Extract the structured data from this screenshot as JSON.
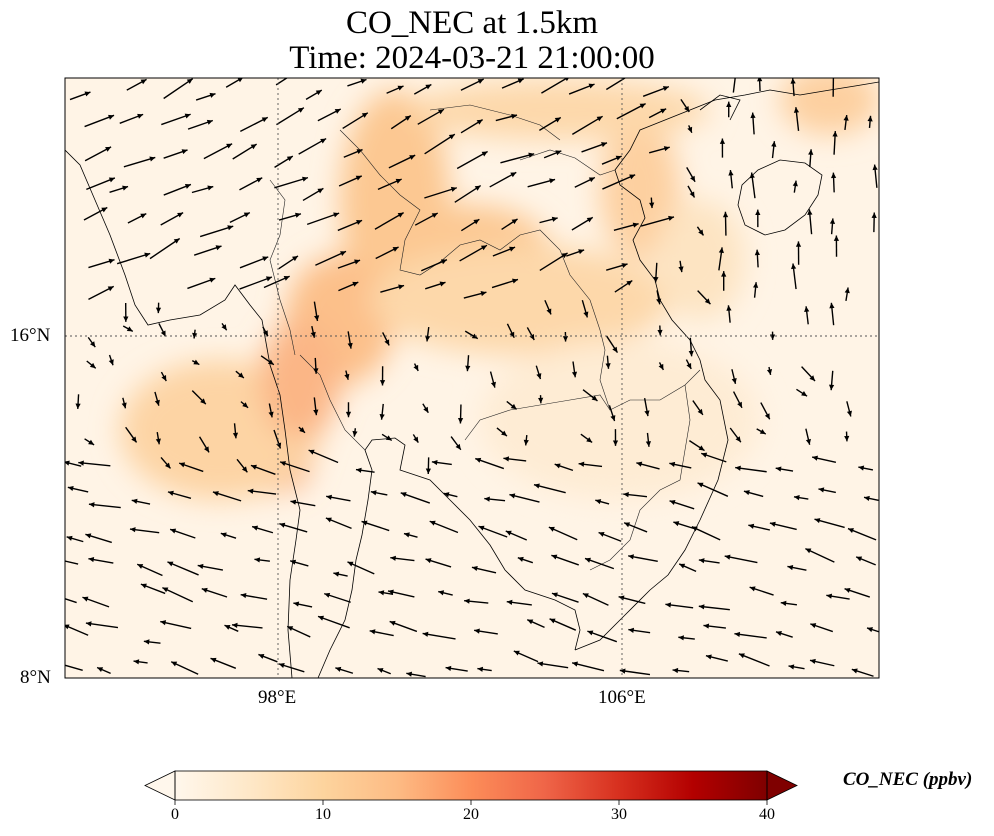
{
  "title": {
    "line1": "CO_NEC at 1.5km",
    "line2": "Time: 2024-03-21 21:00:00"
  },
  "map": {
    "lon_range": [
      93,
      112
    ],
    "lat_range": [
      8,
      22
    ],
    "x_ticks": [
      {
        "value": 98,
        "label": "98°E"
      },
      {
        "value": 106,
        "label": "106°E"
      }
    ],
    "y_ticks": [
      {
        "value": 16,
        "label": "16°N"
      },
      {
        "value": 8,
        "label": "8°N"
      }
    ],
    "gridlines": "dotted",
    "coastlines": true,
    "borders": true,
    "wind_vectors": true
  },
  "chart_data": {
    "type": "heatmap",
    "variable": "CO_NEC",
    "units": "ppbv",
    "colormap": "OrRd",
    "colorbar": {
      "min": 0,
      "max": 40,
      "ticks": [
        0,
        10,
        20,
        30,
        40
      ],
      "tick_labels": [
        "0",
        "10",
        "20",
        "30",
        "40"
      ],
      "extend": "both",
      "label": "CO_NEC (ppbv)",
      "colors": [
        "#fff7ec",
        "#fee8c8",
        "#fdd49e",
        "#fdbb84",
        "#fc8d59",
        "#ef6548",
        "#d7301f",
        "#b30000",
        "#7f0000"
      ]
    }
  }
}
